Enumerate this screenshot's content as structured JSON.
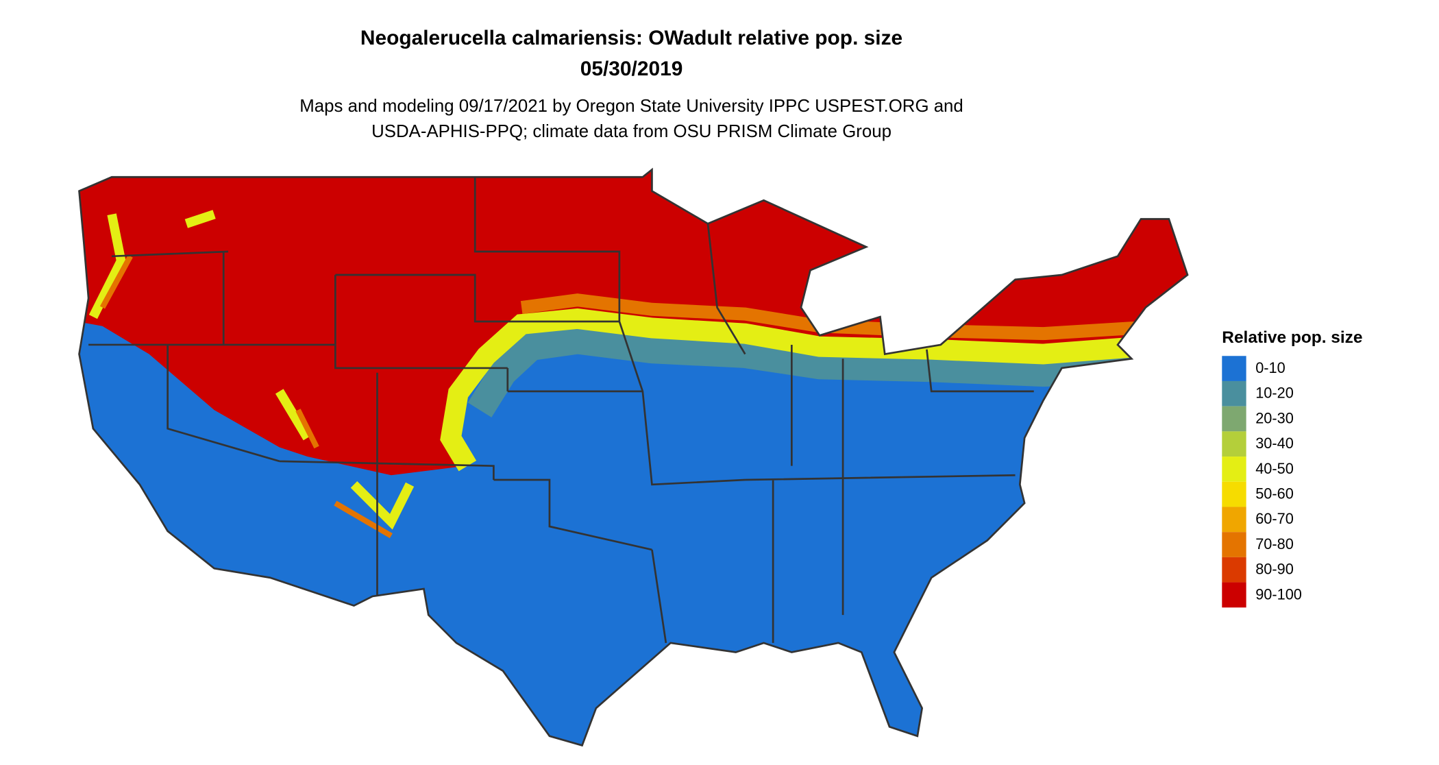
{
  "title": "Neogalerucella calmariensis: OWadult relative pop. size",
  "date": "05/30/2019",
  "subtitle": [
    "Maps and modeling 09/17/2021 by Oregon State University IPPC USPEST.ORG and",
    "USDA-APHIS-PPQ; climate data from OSU PRISM Climate Group"
  ],
  "legend": {
    "title": "Relative pop. size",
    "items": [
      {
        "label": "0-10",
        "color": "#1c72d4"
      },
      {
        "label": "10-20",
        "color": "#4a8f9e"
      },
      {
        "label": "20-30",
        "color": "#7ea870"
      },
      {
        "label": "30-40",
        "color": "#b4cf3a"
      },
      {
        "label": "40-50",
        "color": "#e4ee14"
      },
      {
        "label": "50-60",
        "color": "#f6dc00"
      },
      {
        "label": "60-70",
        "color": "#f0a600"
      },
      {
        "label": "70-80",
        "color": "#e47400"
      },
      {
        "label": "80-90",
        "color": "#db3a00"
      },
      {
        "label": "90-100",
        "color": "#cc0000"
      }
    ]
  }
}
